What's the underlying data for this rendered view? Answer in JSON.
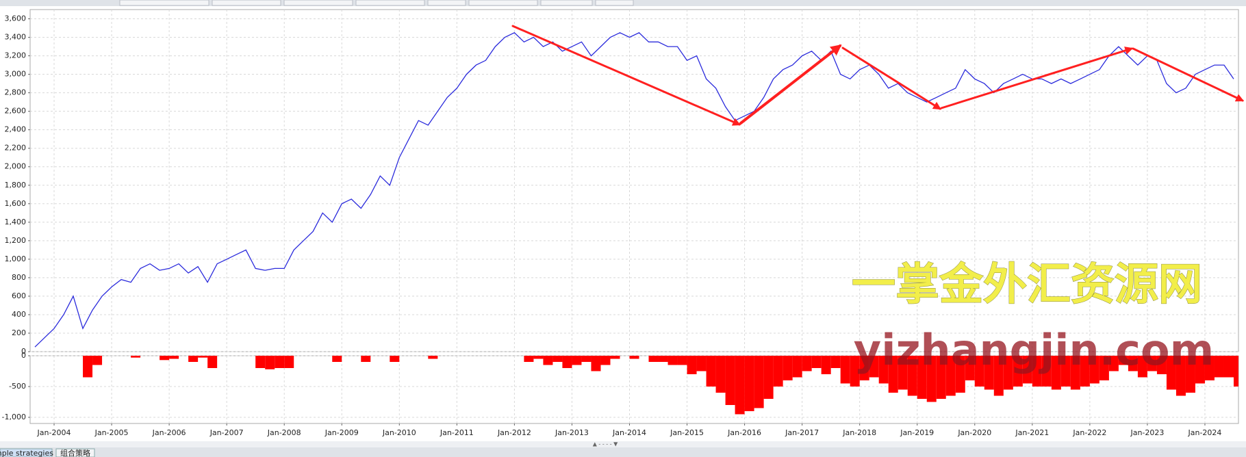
{
  "chart_data": [
    {
      "type": "line",
      "x": [
        "2003-09",
        "2003-11",
        "2004-01",
        "2004-03",
        "2004-05",
        "2004-07",
        "2004-09",
        "2004-11",
        "2005-01",
        "2005-03",
        "2005-05",
        "2005-07",
        "2005-09",
        "2005-11",
        "2006-01",
        "2006-03",
        "2006-05",
        "2006-07",
        "2006-09",
        "2006-11",
        "2007-01",
        "2007-03",
        "2007-05",
        "2007-07",
        "2007-09",
        "2007-11",
        "2008-01",
        "2008-03",
        "2008-05",
        "2008-07",
        "2008-09",
        "2008-11",
        "2009-01",
        "2009-03",
        "2009-05",
        "2009-07",
        "2009-09",
        "2009-11",
        "2010-01",
        "2010-03",
        "2010-05",
        "2010-07",
        "2010-09",
        "2010-11",
        "2011-01",
        "2011-03",
        "2011-05",
        "2011-07",
        "2011-09",
        "2011-11",
        "2012-01",
        "2012-03",
        "2012-05",
        "2012-07",
        "2012-09",
        "2012-11",
        "2013-01",
        "2013-03",
        "2013-05",
        "2013-07",
        "2013-09",
        "2013-11",
        "2014-01",
        "2014-03",
        "2014-05",
        "2014-07",
        "2014-09",
        "2014-11",
        "2015-01",
        "2015-03",
        "2015-05",
        "2015-07",
        "2015-09",
        "2015-11",
        "2016-01",
        "2016-03",
        "2016-05",
        "2016-07",
        "2016-09",
        "2016-11",
        "2017-01",
        "2017-03",
        "2017-05",
        "2017-07",
        "2017-09",
        "2017-11",
        "2018-01",
        "2018-03",
        "2018-05",
        "2018-07",
        "2018-09",
        "2018-11",
        "2019-01",
        "2019-03",
        "2019-05",
        "2019-07",
        "2019-09",
        "2019-11",
        "2020-01",
        "2020-03",
        "2020-05",
        "2020-07",
        "2020-09",
        "2020-11",
        "2021-01",
        "2021-03",
        "2021-05",
        "2021-07",
        "2021-09",
        "2021-11",
        "2022-01",
        "2022-03",
        "2022-05",
        "2022-07",
        "2022-09",
        "2022-11",
        "2023-01",
        "2023-03",
        "2023-05",
        "2023-07",
        "2023-09",
        "2023-11",
        "2024-01",
        "2024-03",
        "2024-05",
        "2024-07"
      ],
      "series": [
        {
          "color": "#2b2bdc",
          "values": [
            50,
            150,
            250,
            400,
            600,
            250,
            450,
            600,
            700,
            780,
            750,
            900,
            950,
            880,
            900,
            950,
            850,
            920,
            750,
            950,
            1000,
            1050,
            1100,
            900,
            880,
            900,
            900,
            1100,
            1200,
            1300,
            1500,
            1400,
            1600,
            1650,
            1550,
            1700,
            1900,
            1800,
            2100,
            2300,
            2500,
            2450,
            2600,
            2750,
            2850,
            3000,
            3100,
            3150,
            3300,
            3400,
            3450,
            3350,
            3400,
            3300,
            3350,
            3250,
            3300,
            3350,
            3200,
            3300,
            3400,
            3450,
            3400,
            3450,
            3350,
            3350,
            3300,
            3300,
            3150,
            3200,
            2950,
            2850,
            2650,
            2500,
            2550,
            2600,
            2750,
            2950,
            3050,
            3100,
            3200,
            3250,
            3150,
            3250,
            3000,
            2950,
            3050,
            3100,
            3000,
            2850,
            2900,
            2800,
            2750,
            2700,
            2750,
            2800,
            2850,
            3050,
            2950,
            2900,
            2800,
            2900,
            2950,
            3000,
            2950,
            2950,
            2900,
            2950,
            2900,
            2950,
            3000,
            3050,
            3200,
            3300,
            3200,
            3100,
            3200,
            3150,
            2900,
            2800,
            2850,
            3000,
            3050,
            3100,
            3100,
            2950
          ]
        }
      ],
      "xlim": [
        "2003-08",
        "2024-08"
      ],
      "ylim": [
        0,
        3700
      ],
      "yticks": [
        0,
        200,
        400,
        600,
        800,
        {
          "value": 1000,
          "label": "1,000"
        },
        {
          "value": 1200,
          "label": "1,200"
        },
        {
          "value": 1400,
          "label": "1,400"
        },
        {
          "value": 1600,
          "label": "1,600"
        },
        {
          "value": 1800,
          "label": "1,800"
        },
        {
          "value": 2000,
          "label": "2,000"
        },
        {
          "value": 2200,
          "label": "2,200"
        },
        {
          "value": 2400,
          "label": "2,400"
        },
        {
          "value": 2600,
          "label": "2,600"
        },
        {
          "value": 2800,
          "label": "2,800"
        },
        {
          "value": 3000,
          "label": "3,000"
        },
        {
          "value": 3200,
          "label": "3,200"
        },
        {
          "value": 3400,
          "label": "3,400"
        },
        {
          "value": 3600,
          "label": "3,600"
        }
      ],
      "grid": true
    },
    {
      "type": "bar",
      "x": [
        "2003-09",
        "2003-11",
        "2004-01",
        "2004-03",
        "2004-05",
        "2004-07",
        "2004-09",
        "2004-11",
        "2005-01",
        "2005-03",
        "2005-05",
        "2005-07",
        "2005-09",
        "2005-11",
        "2006-01",
        "2006-03",
        "2006-05",
        "2006-07",
        "2006-09",
        "2006-11",
        "2007-01",
        "2007-03",
        "2007-05",
        "2007-07",
        "2007-09",
        "2007-11",
        "2008-01",
        "2008-03",
        "2008-05",
        "2008-07",
        "2008-09",
        "2008-11",
        "2009-01",
        "2009-03",
        "2009-05",
        "2009-07",
        "2009-09",
        "2009-11",
        "2010-01",
        "2010-03",
        "2010-05",
        "2010-07",
        "2010-09",
        "2010-11",
        "2011-01",
        "2011-03",
        "2011-05",
        "2011-07",
        "2011-09",
        "2011-11",
        "2012-01",
        "2012-03",
        "2012-05",
        "2012-07",
        "2012-09",
        "2012-11",
        "2013-01",
        "2013-03",
        "2013-05",
        "2013-07",
        "2013-09",
        "2013-11",
        "2014-01",
        "2014-03",
        "2014-05",
        "2014-07",
        "2014-09",
        "2014-11",
        "2015-01",
        "2015-03",
        "2015-05",
        "2015-07",
        "2015-09",
        "2015-11",
        "2016-01",
        "2016-03",
        "2016-05",
        "2016-07",
        "2016-09",
        "2016-11",
        "2017-01",
        "2017-03",
        "2017-05",
        "2017-07",
        "2017-09",
        "2017-11",
        "2018-01",
        "2018-03",
        "2018-05",
        "2018-07",
        "2018-09",
        "2018-11",
        "2019-01",
        "2019-03",
        "2019-05",
        "2019-07",
        "2019-09",
        "2019-11",
        "2020-01",
        "2020-03",
        "2020-05",
        "2020-07",
        "2020-09",
        "2020-11",
        "2021-01",
        "2021-03",
        "2021-05",
        "2021-07",
        "2021-09",
        "2021-11",
        "2022-01",
        "2022-03",
        "2022-05",
        "2022-07",
        "2022-09",
        "2022-11",
        "2023-01",
        "2023-03",
        "2023-05",
        "2023-07",
        "2023-09",
        "2023-11",
        "2024-01",
        "2024-03",
        "2024-05",
        "2024-07"
      ],
      "values": [
        0,
        0,
        0,
        0,
        0,
        -350,
        -150,
        0,
        0,
        0,
        -30,
        0,
        0,
        -70,
        -50,
        0,
        -100,
        -30,
        -200,
        0,
        0,
        0,
        0,
        -200,
        -220,
        -200,
        -200,
        0,
        0,
        0,
        0,
        -100,
        0,
        0,
        -100,
        0,
        0,
        -100,
        0,
        0,
        0,
        -50,
        0,
        0,
        0,
        0,
        0,
        0,
        0,
        0,
        0,
        -100,
        -50,
        -150,
        -100,
        -200,
        -150,
        -100,
        -250,
        -150,
        -50,
        0,
        -50,
        0,
        -100,
        -100,
        -150,
        -150,
        -300,
        -250,
        -500,
        -600,
        -800,
        -950,
        -900,
        -850,
        -700,
        -500,
        -400,
        -350,
        -250,
        -200,
        -300,
        -200,
        -450,
        -500,
        -400,
        -350,
        -450,
        -600,
        -550,
        -650,
        -700,
        -750,
        -700,
        -650,
        -600,
        -400,
        -500,
        -550,
        -650,
        -550,
        -500,
        -450,
        -500,
        -500,
        -550,
        -500,
        -550,
        -500,
        -450,
        -400,
        -250,
        -150,
        -250,
        -350,
        -250,
        -300,
        -550,
        -650,
        -600,
        -450,
        -400,
        -350,
        -350,
        -500
      ],
      "color": "#ff0000",
      "xlim": [
        "2003-08",
        "2024-08"
      ],
      "ylim": [
        -1100,
        0
      ],
      "yticks": [
        0,
        -500,
        {
          "value": -1000,
          "label": "-1,000"
        }
      ],
      "xticks": [
        {
          "value": "2004-01",
          "label": "Jan-2004"
        },
        {
          "value": "2005-01",
          "label": "Jan-2005"
        },
        {
          "value": "2006-01",
          "label": "Jan-2006"
        },
        {
          "value": "2007-01",
          "label": "Jan-2007"
        },
        {
          "value": "2008-01",
          "label": "Jan-2008"
        },
        {
          "value": "2009-01",
          "label": "Jan-2009"
        },
        {
          "value": "2010-01",
          "label": "Jan-2010"
        },
        {
          "value": "2011-01",
          "label": "Jan-2011"
        },
        {
          "value": "2012-01",
          "label": "Jan-2012"
        },
        {
          "value": "2013-01",
          "label": "Jan-2013"
        },
        {
          "value": "2014-01",
          "label": "Jan-2014"
        },
        {
          "value": "2015-01",
          "label": "Jan-2015"
        },
        {
          "value": "2016-01",
          "label": "Jan-2016"
        },
        {
          "value": "2017-01",
          "label": "Jan-2017"
        },
        {
          "value": "2018-01",
          "label": "Jan-2018"
        },
        {
          "value": "2019-01",
          "label": "Jan-2019"
        },
        {
          "value": "2020-01",
          "label": "Jan-2020"
        },
        {
          "value": "2021-01",
          "label": "Jan-2021"
        },
        {
          "value": "2022-01",
          "label": "Jan-2022"
        },
        {
          "value": "2023-01",
          "label": "Jan-2023"
        },
        {
          "value": "2024-01",
          "label": "Jan-2024"
        }
      ],
      "grid": true
    }
  ],
  "watermark": [
    "一掌金外汇资源网",
    "yizhangjin.com"
  ],
  "tabs": [
    "mple strategies",
    "组合策略"
  ]
}
